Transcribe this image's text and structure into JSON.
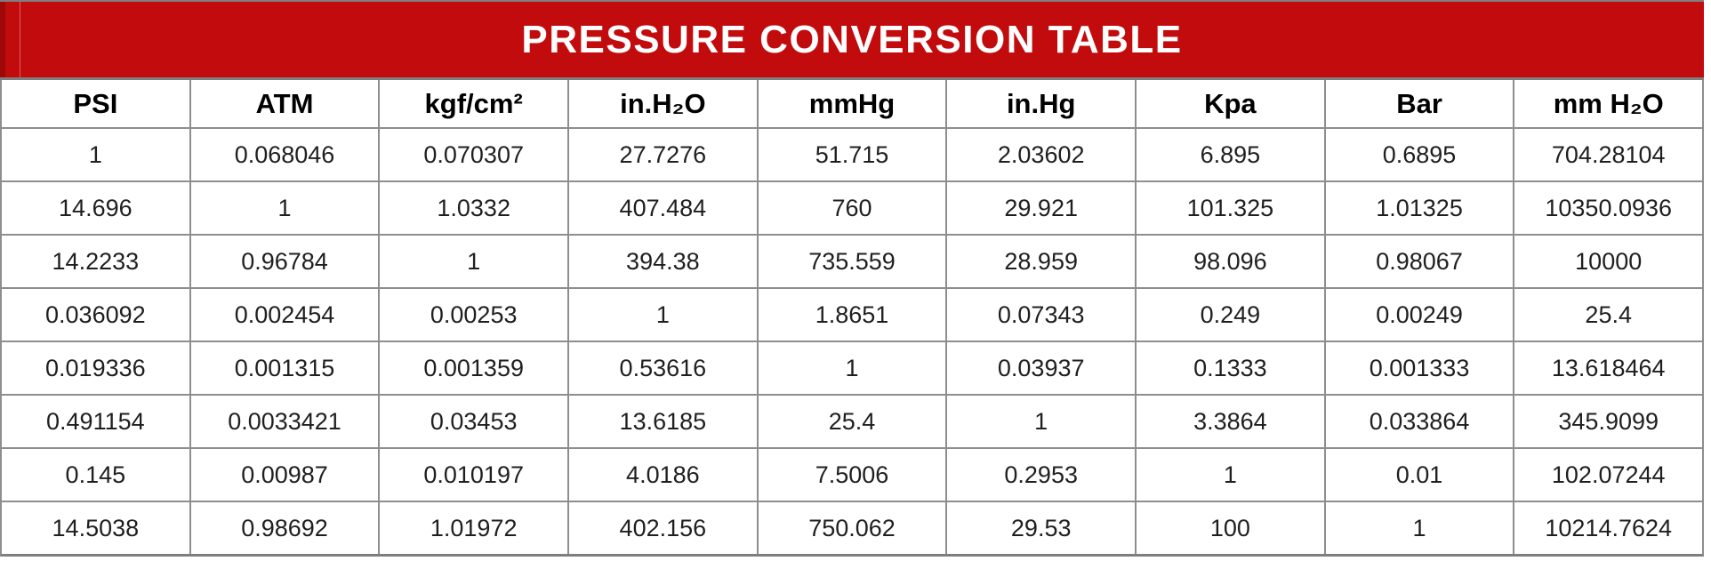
{
  "colors": {
    "header_red": "#c20b0d",
    "dark_red": "#9e0808",
    "grid_line": "#8e8e8e",
    "outer_border": "#7f7f7f",
    "text_color": "#1f1f1f",
    "title_text": "#ffffff"
  },
  "chart_data": {
    "type": "table",
    "title": "PRESSURE CONVERSION TABLE",
    "columns": [
      "PSI",
      "ATM",
      "kgf/cm²",
      "in.H₂O",
      "mmHg",
      "in.Hg",
      "Kpa",
      "Bar",
      "mm H₂O"
    ],
    "rows": [
      [
        "1",
        "0.068046",
        "0.070307",
        "27.7276",
        "51.715",
        "2.03602",
        "6.895",
        "0.6895",
        "704.28104"
      ],
      [
        "14.696",
        "1",
        "1.0332",
        "407.484",
        "760",
        "29.921",
        "101.325",
        "1.01325",
        "10350.0936"
      ],
      [
        "14.2233",
        "0.96784",
        "1",
        "394.38",
        "735.559",
        "28.959",
        "98.096",
        "0.98067",
        "10000"
      ],
      [
        "0.036092",
        "0.002454",
        "0.00253",
        "1",
        "1.8651",
        "0.07343",
        "0.249",
        "0.00249",
        "25.4"
      ],
      [
        "0.019336",
        "0.001315",
        "0.001359",
        "0.53616",
        "1",
        "0.03937",
        "0.1333",
        "0.001333",
        "13.618464"
      ],
      [
        "0.491154",
        "0.0033421",
        "0.03453",
        "13.6185",
        "25.4",
        "1",
        "3.3864",
        "0.033864",
        "345.9099"
      ],
      [
        "0.145",
        "0.00987",
        "0.010197",
        "4.0186",
        "7.5006",
        "0.2953",
        "1",
        "0.01",
        "102.07244"
      ],
      [
        "14.5038",
        "0.98692",
        "1.01972",
        "402.156",
        "750.062",
        "29.53",
        "100",
        "1",
        "10214.7624"
      ]
    ]
  }
}
